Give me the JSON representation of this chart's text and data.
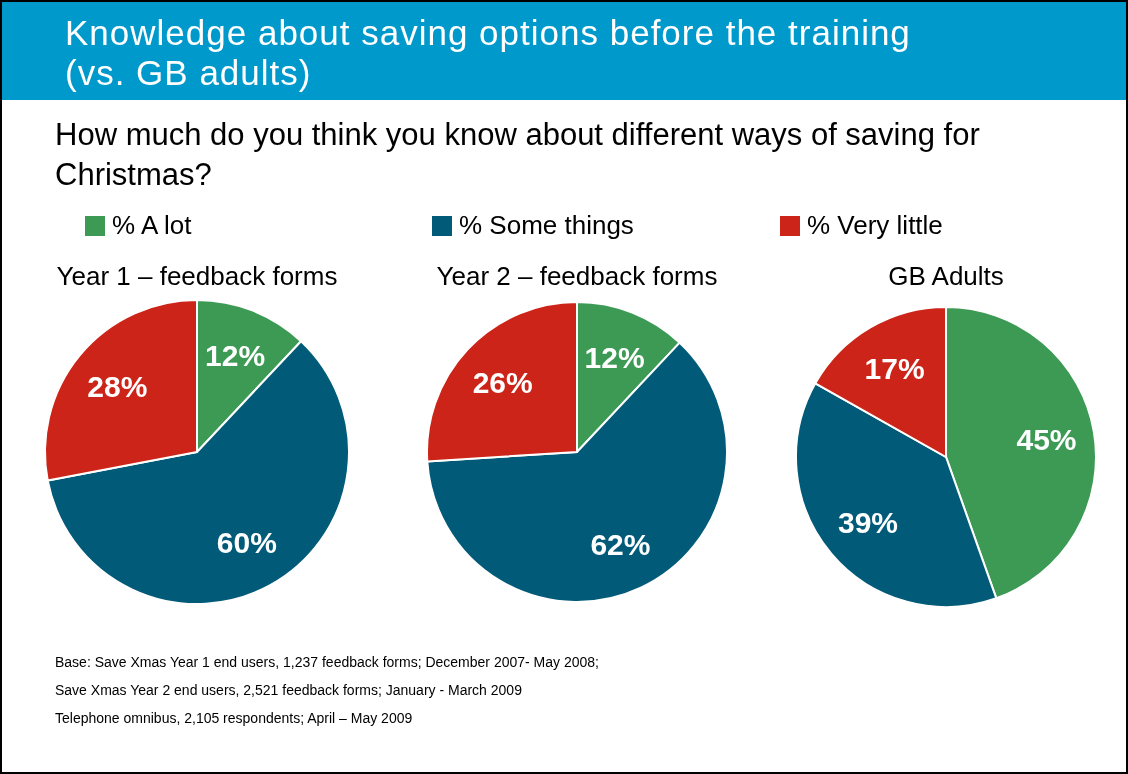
{
  "chart_data": [
    {
      "type": "other",
      "title": "Knowledge about saving options before the training (vs. GB adults)",
      "subtitle": "How much do you think you know about different ways of saving for Christmas?",
      "annotations": [
        "Base: Save Xmas Year 1 end users, 1,237 feedback forms; December 2007- May 2008;",
        "Save Xmas Year 2 end users, 2,521 feedback forms; January - March 2009",
        "Telephone omnibus, 2,105 respondents; April – May 2009"
      ]
    },
    {
      "type": "pie",
      "title": "Year 1 – feedback forms",
      "categories": [
        "% A lot",
        "% Some things",
        "% Very little"
      ],
      "values": [
        12,
        60,
        28
      ],
      "colors": [
        "#3c9a55",
        "#005a78",
        "#cc2418"
      ],
      "value_labels": [
        "12%",
        "60%",
        "28%"
      ],
      "legend": "top"
    },
    {
      "type": "pie",
      "title": "Year 2 – feedback forms",
      "categories": [
        null,
        null,
        null
      ],
      "values": [
        12,
        62,
        26
      ],
      "colors": [
        "#3c9a55",
        "#005a78",
        "#cc2418"
      ],
      "value_labels": [
        "12%",
        "62%",
        "26%"
      ]
    },
    {
      "type": "pie",
      "title": "GB Adults",
      "categories": [
        null,
        null,
        null
      ],
      "values": [
        45,
        39,
        17
      ],
      "colors": [
        "#3c9a55",
        "#005a78",
        "#cc2418"
      ],
      "value_labels": [
        "45%",
        "39%",
        "17%"
      ]
    }
  ]
}
